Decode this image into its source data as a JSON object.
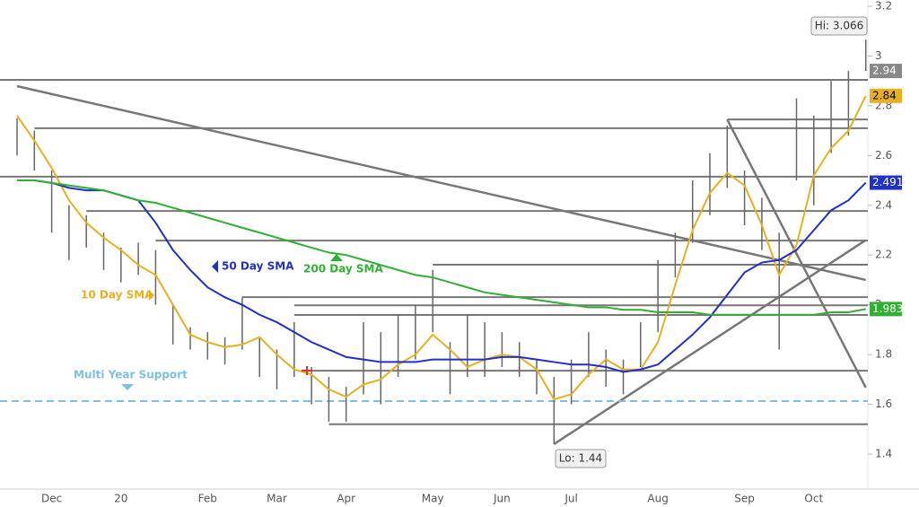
{
  "chart_data": {
    "type": "ohlc",
    "categories": [
      null,
      null,
      "Dec",
      null,
      null,
      null,
      "20",
      null,
      null,
      null,
      null,
      "Feb",
      null,
      null,
      null,
      "Mar",
      null,
      null,
      null,
      "Apr",
      null,
      null,
      null,
      null,
      "May",
      null,
      null,
      null,
      "Jun",
      null,
      null,
      null,
      "Jul",
      null,
      null,
      null,
      null,
      "Aug",
      null,
      null,
      null,
      null,
      "Sep",
      null,
      null,
      null,
      "Oct",
      null,
      null,
      null
    ],
    "price": {
      "color": "#666666",
      "high": [
        2.75,
        2.7,
        2.54,
        2.4,
        2.36,
        2.29,
        2.23,
        2.25,
        2.22,
        2.0,
        1.91,
        1.89,
        1.87,
        2.03,
        1.87,
        1.82,
        1.93,
        1.75,
        1.71,
        1.67,
        1.93,
        1.89,
        1.96,
        2.0,
        2.14,
        1.85,
        1.96,
        1.93,
        1.89,
        1.85,
        1.78,
        1.71,
        1.78,
        1.89,
        1.82,
        1.78,
        1.93,
        2.18,
        2.29,
        2.5,
        2.61,
        2.72,
        2.54,
        2.43,
        2.29,
        2.83,
        2.76,
        2.9,
        2.94,
        3.066
      ],
      "low": [
        2.6,
        2.54,
        2.29,
        2.18,
        2.23,
        2.14,
        2.09,
        2.12,
        2.0,
        1.84,
        1.82,
        1.78,
        1.76,
        1.82,
        1.71,
        1.66,
        1.71,
        1.6,
        1.53,
        1.53,
        1.64,
        1.6,
        1.71,
        1.78,
        1.89,
        1.64,
        1.71,
        1.71,
        1.75,
        1.71,
        1.64,
        1.44,
        1.6,
        1.71,
        1.67,
        1.64,
        1.75,
        1.89,
        2.11,
        2.25,
        2.36,
        2.47,
        2.32,
        2.22,
        1.82,
        2.5,
        2.4,
        2.61,
        2.68,
        2.94
      ],
      "last": 2.94
    },
    "series": [
      {
        "name": "10 Day SMA",
        "color": "#e8b020",
        "values": [
          2.76,
          2.66,
          2.55,
          2.42,
          2.33,
          2.27,
          2.22,
          2.16,
          2.12,
          2.0,
          1.88,
          1.85,
          1.83,
          1.84,
          1.87,
          1.8,
          1.74,
          1.72,
          1.66,
          1.63,
          1.68,
          1.7,
          1.76,
          1.8,
          1.88,
          1.82,
          1.75,
          1.78,
          1.8,
          1.79,
          1.74,
          1.62,
          1.64,
          1.72,
          1.78,
          1.74,
          1.74,
          1.85,
          2.08,
          2.3,
          2.45,
          2.53,
          2.48,
          2.32,
          2.12,
          2.24,
          2.52,
          2.63,
          2.7,
          2.84
        ]
      },
      {
        "name": "50 Day SMA",
        "color": "#2030c8",
        "values": [
          2.5,
          2.5,
          2.49,
          2.47,
          2.46,
          2.46,
          2.44,
          2.42,
          2.33,
          2.22,
          2.14,
          2.07,
          2.03,
          2.0,
          1.96,
          1.93,
          1.89,
          1.85,
          1.82,
          1.79,
          1.78,
          1.77,
          1.77,
          1.77,
          1.78,
          1.78,
          1.78,
          1.78,
          1.79,
          1.79,
          1.78,
          1.77,
          1.76,
          1.76,
          1.75,
          1.73,
          1.74,
          1.76,
          1.82,
          1.88,
          1.95,
          2.04,
          2.13,
          2.17,
          2.18,
          2.22,
          2.3,
          2.38,
          2.42,
          2.491
        ]
      },
      {
        "name": "200 Day SMA",
        "color": "#30b030",
        "values": [
          2.5,
          2.5,
          2.49,
          2.48,
          2.47,
          2.46,
          2.44,
          2.42,
          2.41,
          2.39,
          2.37,
          2.35,
          2.33,
          2.31,
          2.29,
          2.27,
          2.25,
          2.23,
          2.21,
          2.2,
          2.18,
          2.16,
          2.14,
          2.12,
          2.11,
          2.09,
          2.07,
          2.05,
          2.04,
          2.03,
          2.02,
          2.01,
          2.0,
          1.99,
          1.99,
          1.98,
          1.98,
          1.97,
          1.97,
          1.97,
          1.96,
          1.96,
          1.96,
          1.96,
          1.96,
          1.96,
          1.96,
          1.97,
          1.97,
          1.983
        ]
      }
    ],
    "levels": [
      {
        "value": 2.904,
        "from": 0
      },
      {
        "value": 2.745,
        "from": 41
      },
      {
        "value": 2.71,
        "from": 1
      },
      {
        "value": 2.515,
        "from": 0
      },
      {
        "value": 2.377,
        "from": 4
      },
      {
        "value": 2.258,
        "from": 8
      },
      {
        "value": 2.161,
        "from": 24
      },
      {
        "value": 2.031,
        "from": 13
      },
      {
        "value": 1.998,
        "from": 16
      },
      {
        "value": 1.959,
        "from": 16
      },
      {
        "value": 1.735,
        "from": 17
      },
      {
        "value": 1.52,
        "from": 18
      }
    ],
    "trendlines": [
      {
        "from": [
          0,
          2.879
        ],
        "to": [
          49,
          2.1
        ]
      },
      {
        "from": [
          31,
          1.44
        ],
        "to": [
          49,
          2.26
        ]
      },
      {
        "from": [
          41,
          2.745
        ],
        "to": [
          49,
          1.667
        ]
      }
    ],
    "support": {
      "label": "Multi Year Support",
      "value": 1.613,
      "color": "#7ec0e0"
    },
    "hi_label": "Hi: 3.066",
    "lo_label": "Lo: 1.44",
    "ylim": [
      1.4,
      3.2
    ],
    "yticks": [
      1.4,
      1.6,
      1.8,
      2,
      2.2,
      2.4,
      2.6,
      2.8,
      3,
      3.2
    ]
  }
}
